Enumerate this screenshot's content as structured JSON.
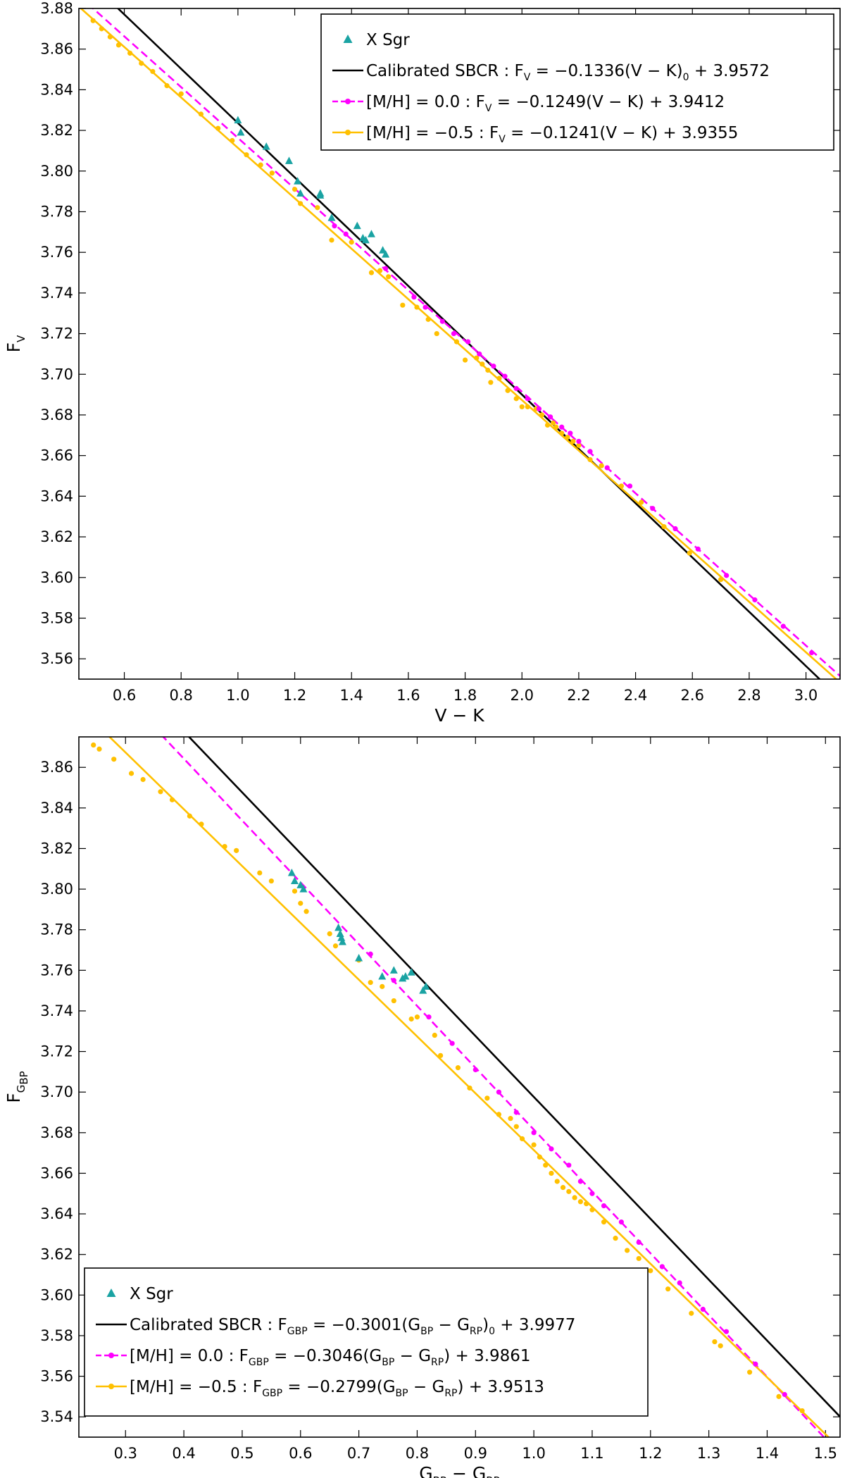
{
  "chart_data": [
    {
      "type": "scatter",
      "xlabel": {
        "main": "V − K",
        "sub": ""
      },
      "ylabel": {
        "main": "F",
        "sub": "V"
      },
      "xlim": [
        0.44,
        3.12
      ],
      "ylim": [
        3.55,
        3.88
      ],
      "xticks": [
        0.6,
        0.8,
        1.0,
        1.2,
        1.4,
        1.6,
        1.8,
        2.0,
        2.2,
        2.4,
        2.6,
        2.8,
        3.0
      ],
      "yticks": [
        3.56,
        3.58,
        3.6,
        3.62,
        3.64,
        3.66,
        3.68,
        3.7,
        3.72,
        3.74,
        3.76,
        3.78,
        3.8,
        3.82,
        3.84,
        3.86,
        3.88
      ],
      "tick_decimals_x": 1,
      "tick_decimals_y": 2,
      "legend_position": "top-right",
      "legend": [
        {
          "marker": "triangle",
          "color": "#1aa3a3",
          "label": "X Sgr"
        },
        {
          "marker": "line",
          "color": "#000000",
          "label": "Calibrated SBCR  : F_V = −0.1336(V − K)_0 + 3.9572"
        },
        {
          "marker": "dashed-dot",
          "color": "#ff00ff",
          "label": "[M/H] = 0.0 : F_V = −0.1249(V − K) + 3.9412"
        },
        {
          "marker": "line-dot",
          "color": "#ffc000",
          "label": "[M/H] = −0.5 : F_V = −0.1241(V − K) + 3.9355"
        }
      ],
      "lines": [
        {
          "name": "Calibrated SBCR",
          "color": "#000000",
          "style": "solid",
          "slope": -0.1336,
          "intercept": 3.9572
        },
        {
          "name": "[M/H] = 0.0",
          "color": "#ff00ff",
          "style": "dashed",
          "slope": -0.1249,
          "intercept": 3.9412
        },
        {
          "name": "[M/H] = −0.5",
          "color": "#ffc000",
          "style": "solid",
          "slope": -0.1241,
          "intercept": 3.9355
        }
      ],
      "series": [
        {
          "name": "[M/H] = −0.5",
          "marker": "dot",
          "color": "#ffc000",
          "points": [
            [
              0.49,
              3.874
            ],
            [
              0.52,
              3.87
            ],
            [
              0.55,
              3.866
            ],
            [
              0.58,
              3.862
            ],
            [
              0.62,
              3.858
            ],
            [
              0.66,
              3.853
            ],
            [
              0.7,
              3.849
            ],
            [
              0.75,
              3.842
            ],
            [
              0.8,
              3.838
            ],
            [
              0.87,
              3.828
            ],
            [
              0.93,
              3.821
            ],
            [
              0.98,
              3.815
            ],
            [
              1.03,
              3.808
            ],
            [
              1.08,
              3.803
            ],
            [
              1.12,
              3.799
            ],
            [
              1.2,
              3.791
            ],
            [
              1.22,
              3.784
            ],
            [
              1.28,
              3.782
            ],
            [
              1.33,
              3.766
            ],
            [
              1.4,
              3.765
            ],
            [
              1.47,
              3.75
            ],
            [
              1.5,
              3.751
            ],
            [
              1.53,
              3.748
            ],
            [
              1.58,
              3.734
            ],
            [
              1.63,
              3.733
            ],
            [
              1.67,
              3.727
            ],
            [
              1.7,
              3.72
            ],
            [
              1.77,
              3.716
            ],
            [
              1.8,
              3.707
            ],
            [
              1.84,
              3.708
            ],
            [
              1.86,
              3.705
            ],
            [
              1.88,
              3.702
            ],
            [
              1.89,
              3.696
            ],
            [
              1.92,
              3.698
            ],
            [
              1.95,
              3.692
            ],
            [
              1.98,
              3.688
            ],
            [
              2.0,
              3.684
            ],
            [
              2.02,
              3.684
            ],
            [
              2.05,
              3.683
            ],
            [
              2.07,
              3.68
            ],
            [
              2.09,
              3.675
            ],
            [
              2.11,
              3.676
            ],
            [
              2.12,
              3.674
            ],
            [
              2.14,
              3.671
            ],
            [
              2.16,
              3.669
            ],
            [
              2.18,
              3.667
            ],
            [
              2.2,
              3.665
            ],
            [
              2.24,
              3.658
            ],
            [
              2.28,
              3.655
            ],
            [
              2.35,
              3.645
            ],
            [
              2.42,
              3.637
            ],
            [
              2.5,
              3.625
            ],
            [
              2.59,
              3.612
            ],
            [
              2.7,
              3.599
            ]
          ]
        },
        {
          "name": "[M/H] = 0.0",
          "marker": "dot",
          "color": "#ff00ff",
          "points": [
            [
              1.34,
              3.773
            ],
            [
              1.38,
              3.769
            ],
            [
              1.52,
              3.752
            ],
            [
              1.62,
              3.738
            ],
            [
              1.66,
              3.733
            ],
            [
              1.72,
              3.726
            ],
            [
              1.76,
              3.72
            ],
            [
              1.81,
              3.716
            ],
            [
              1.85,
              3.71
            ],
            [
              1.9,
              3.704
            ],
            [
              1.94,
              3.699
            ],
            [
              1.98,
              3.693
            ],
            [
              2.02,
              3.688
            ],
            [
              2.06,
              3.683
            ],
            [
              2.1,
              3.679
            ],
            [
              2.14,
              3.674
            ],
            [
              2.17,
              3.671
            ],
            [
              2.2,
              3.667
            ],
            [
              2.24,
              3.662
            ],
            [
              2.3,
              3.654
            ],
            [
              2.38,
              3.645
            ],
            [
              2.46,
              3.634
            ],
            [
              2.54,
              3.624
            ],
            [
              2.62,
              3.614
            ],
            [
              2.72,
              3.601
            ],
            [
              2.82,
              3.589
            ],
            [
              2.92,
              3.576
            ],
            [
              3.02,
              3.563
            ]
          ]
        },
        {
          "name": "X Sgr",
          "marker": "triangle",
          "color": "#1aa3a3",
          "points": [
            [
              1.0,
              3.825
            ],
            [
              1.01,
              3.819
            ],
            [
              1.1,
              3.812
            ],
            [
              1.18,
              3.805
            ],
            [
              1.21,
              3.795
            ],
            [
              1.22,
              3.789
            ],
            [
              1.29,
              3.788
            ],
            [
              1.29,
              3.789
            ],
            [
              1.33,
              3.777
            ],
            [
              1.42,
              3.773
            ],
            [
              1.44,
              3.767
            ],
            [
              1.45,
              3.766
            ],
            [
              1.47,
              3.769
            ],
            [
              1.51,
              3.761
            ],
            [
              1.52,
              3.759
            ]
          ]
        }
      ]
    },
    {
      "type": "scatter",
      "xlabel": {
        "main": "G",
        "sub": "BP",
        "rest": " − G",
        "sub2": "RP"
      },
      "ylabel": {
        "main": "F",
        "sub": "G",
        "subsub": "BP"
      },
      "xlim": [
        0.22,
        1.525
      ],
      "ylim": [
        3.53,
        3.875
      ],
      "xticks": [
        0.3,
        0.4,
        0.5,
        0.6,
        0.7,
        0.8,
        0.9,
        1.0,
        1.1,
        1.2,
        1.3,
        1.4,
        1.5
      ],
      "yticks": [
        3.54,
        3.56,
        3.58,
        3.6,
        3.62,
        3.64,
        3.66,
        3.68,
        3.7,
        3.72,
        3.74,
        3.76,
        3.78,
        3.8,
        3.82,
        3.84,
        3.86
      ],
      "tick_decimals_x": 1,
      "tick_decimals_y": 2,
      "legend_position": "bottom-left",
      "legend": [
        {
          "marker": "triangle",
          "color": "#1aa3a3",
          "label": "X Sgr"
        },
        {
          "marker": "line",
          "color": "#000000",
          "label": "Calibrated SBCR  : F_G_BP = −0.3001(G_BP − G_RP)_0 + 3.9977"
        },
        {
          "marker": "dashed-dot",
          "color": "#ff00ff",
          "label": "[M/H] = 0.0 : F_G_BP = −0.3046(G_BP − G_RP) + 3.9861"
        },
        {
          "marker": "line-dot",
          "color": "#ffc000",
          "label": "[M/H] = −0.5 : F_G_BP = −0.2799(G_BP − G_RP) + 3.9513"
        }
      ],
      "lines": [
        {
          "name": "Calibrated SBCR",
          "color": "#000000",
          "style": "solid",
          "slope": -0.3001,
          "intercept": 3.9977
        },
        {
          "name": "[M/H] = 0.0",
          "color": "#ff00ff",
          "style": "dashed",
          "slope": -0.3046,
          "intercept": 3.9861
        },
        {
          "name": "[M/H] = −0.5",
          "color": "#ffc000",
          "style": "solid",
          "slope": -0.2799,
          "intercept": 3.9513
        }
      ],
      "series": [
        {
          "name": "[M/H] = −0.5",
          "marker": "dot",
          "color": "#ffc000",
          "points": [
            [
              0.245,
              3.871
            ],
            [
              0.255,
              3.869
            ],
            [
              0.28,
              3.864
            ],
            [
              0.31,
              3.857
            ],
            [
              0.33,
              3.854
            ],
            [
              0.36,
              3.848
            ],
            [
              0.38,
              3.844
            ],
            [
              0.41,
              3.836
            ],
            [
              0.43,
              3.832
            ],
            [
              0.47,
              3.821
            ],
            [
              0.49,
              3.819
            ],
            [
              0.53,
              3.808
            ],
            [
              0.55,
              3.804
            ],
            [
              0.59,
              3.799
            ],
            [
              0.6,
              3.793
            ],
            [
              0.61,
              3.789
            ],
            [
              0.65,
              3.778
            ],
            [
              0.66,
              3.772
            ],
            [
              0.7,
              3.765
            ],
            [
              0.72,
              3.754
            ],
            [
              0.74,
              3.752
            ],
            [
              0.76,
              3.745
            ],
            [
              0.79,
              3.736
            ],
            [
              0.8,
              3.737
            ],
            [
              0.83,
              3.728
            ],
            [
              0.84,
              3.718
            ],
            [
              0.87,
              3.712
            ],
            [
              0.89,
              3.702
            ],
            [
              0.92,
              3.697
            ],
            [
              0.94,
              3.689
            ],
            [
              0.96,
              3.687
            ],
            [
              0.97,
              3.683
            ],
            [
              0.98,
              3.677
            ],
            [
              1.0,
              3.674
            ],
            [
              1.01,
              3.668
            ],
            [
              1.02,
              3.664
            ],
            [
              1.03,
              3.66
            ],
            [
              1.04,
              3.656
            ],
            [
              1.05,
              3.653
            ],
            [
              1.06,
              3.651
            ],
            [
              1.07,
              3.648
            ],
            [
              1.08,
              3.646
            ],
            [
              1.09,
              3.645
            ],
            [
              1.1,
              3.642
            ],
            [
              1.12,
              3.636
            ],
            [
              1.14,
              3.628
            ],
            [
              1.16,
              3.622
            ],
            [
              1.18,
              3.618
            ],
            [
              1.2,
              3.612
            ],
            [
              1.23,
              3.603
            ],
            [
              1.27,
              3.591
            ],
            [
              1.31,
              3.577
            ],
            [
              1.32,
              3.575
            ],
            [
              1.37,
              3.562
            ],
            [
              1.42,
              3.55
            ],
            [
              1.46,
              3.543
            ]
          ]
        },
        {
          "name": "[M/H] = 0.0",
          "marker": "dot",
          "color": "#ff00ff",
          "points": [
            [
              0.72,
              3.768
            ],
            [
              0.76,
              3.755
            ],
            [
              0.82,
              3.737
            ],
            [
              0.86,
              3.724
            ],
            [
              0.9,
              3.711
            ],
            [
              0.94,
              3.7
            ],
            [
              0.97,
              3.69
            ],
            [
              1.0,
              3.68
            ],
            [
              1.03,
              3.672
            ],
            [
              1.06,
              3.664
            ],
            [
              1.08,
              3.656
            ],
            [
              1.1,
              3.65
            ],
            [
              1.12,
              3.644
            ],
            [
              1.15,
              3.636
            ],
            [
              1.18,
              3.626
            ],
            [
              1.22,
              3.614
            ],
            [
              1.25,
              3.606
            ],
            [
              1.29,
              3.593
            ],
            [
              1.33,
              3.582
            ],
            [
              1.38,
              3.566
            ],
            [
              1.43,
              3.551
            ]
          ]
        },
        {
          "name": "X Sgr",
          "marker": "triangle",
          "color": "#1aa3a3",
          "points": [
            [
              0.585,
              3.808
            ],
            [
              0.59,
              3.804
            ],
            [
              0.6,
              3.802
            ],
            [
              0.605,
              3.8
            ],
            [
              0.665,
              3.781
            ],
            [
              0.668,
              3.778
            ],
            [
              0.67,
              3.776
            ],
            [
              0.672,
              3.774
            ],
            [
              0.7,
              3.766
            ],
            [
              0.74,
              3.757
            ],
            [
              0.76,
              3.76
            ],
            [
              0.775,
              3.756
            ],
            [
              0.78,
              3.757
            ],
            [
              0.79,
              3.759
            ],
            [
              0.81,
              3.75
            ],
            [
              0.815,
              3.752
            ]
          ]
        }
      ]
    }
  ]
}
